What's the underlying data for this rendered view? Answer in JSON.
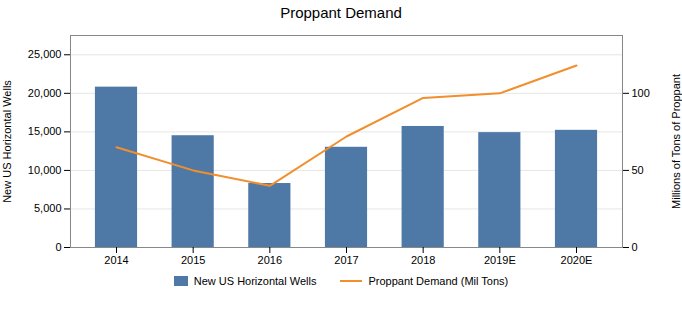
{
  "chart_data": {
    "type": "bar",
    "title": "Proppant Demand",
    "categories": [
      "2014",
      "2015",
      "2016",
      "2017",
      "2018",
      "2019E",
      "2020E"
    ],
    "series": [
      {
        "name": "New US Horizontal Wells",
        "type": "bar",
        "values": [
          20800,
          14500,
          8300,
          13000,
          15700,
          14900,
          15200
        ]
      },
      {
        "name": "Proppant Demand (Mil Tons)",
        "type": "line",
        "axis": "y2",
        "values": [
          65,
          50,
          40,
          72,
          97,
          100,
          118
        ]
      }
    ],
    "ylabel": "New US Horizontal Wells",
    "y2label": "Millions of Tons of Proppant",
    "ylim": [
      0,
      27500
    ],
    "yticks": [
      0,
      {
        "value": 5000,
        "label": "5,000"
      },
      {
        "value": 10000,
        "label": "10,000"
      },
      {
        "value": 15000,
        "label": "15,000"
      },
      {
        "value": 20000,
        "label": "20,000"
      },
      {
        "value": 25000,
        "label": "25,000"
      }
    ],
    "y2lim": [
      0,
      137.5
    ],
    "y2ticks": [
      0,
      50,
      100
    ],
    "grid": true,
    "legend": "bottom"
  }
}
